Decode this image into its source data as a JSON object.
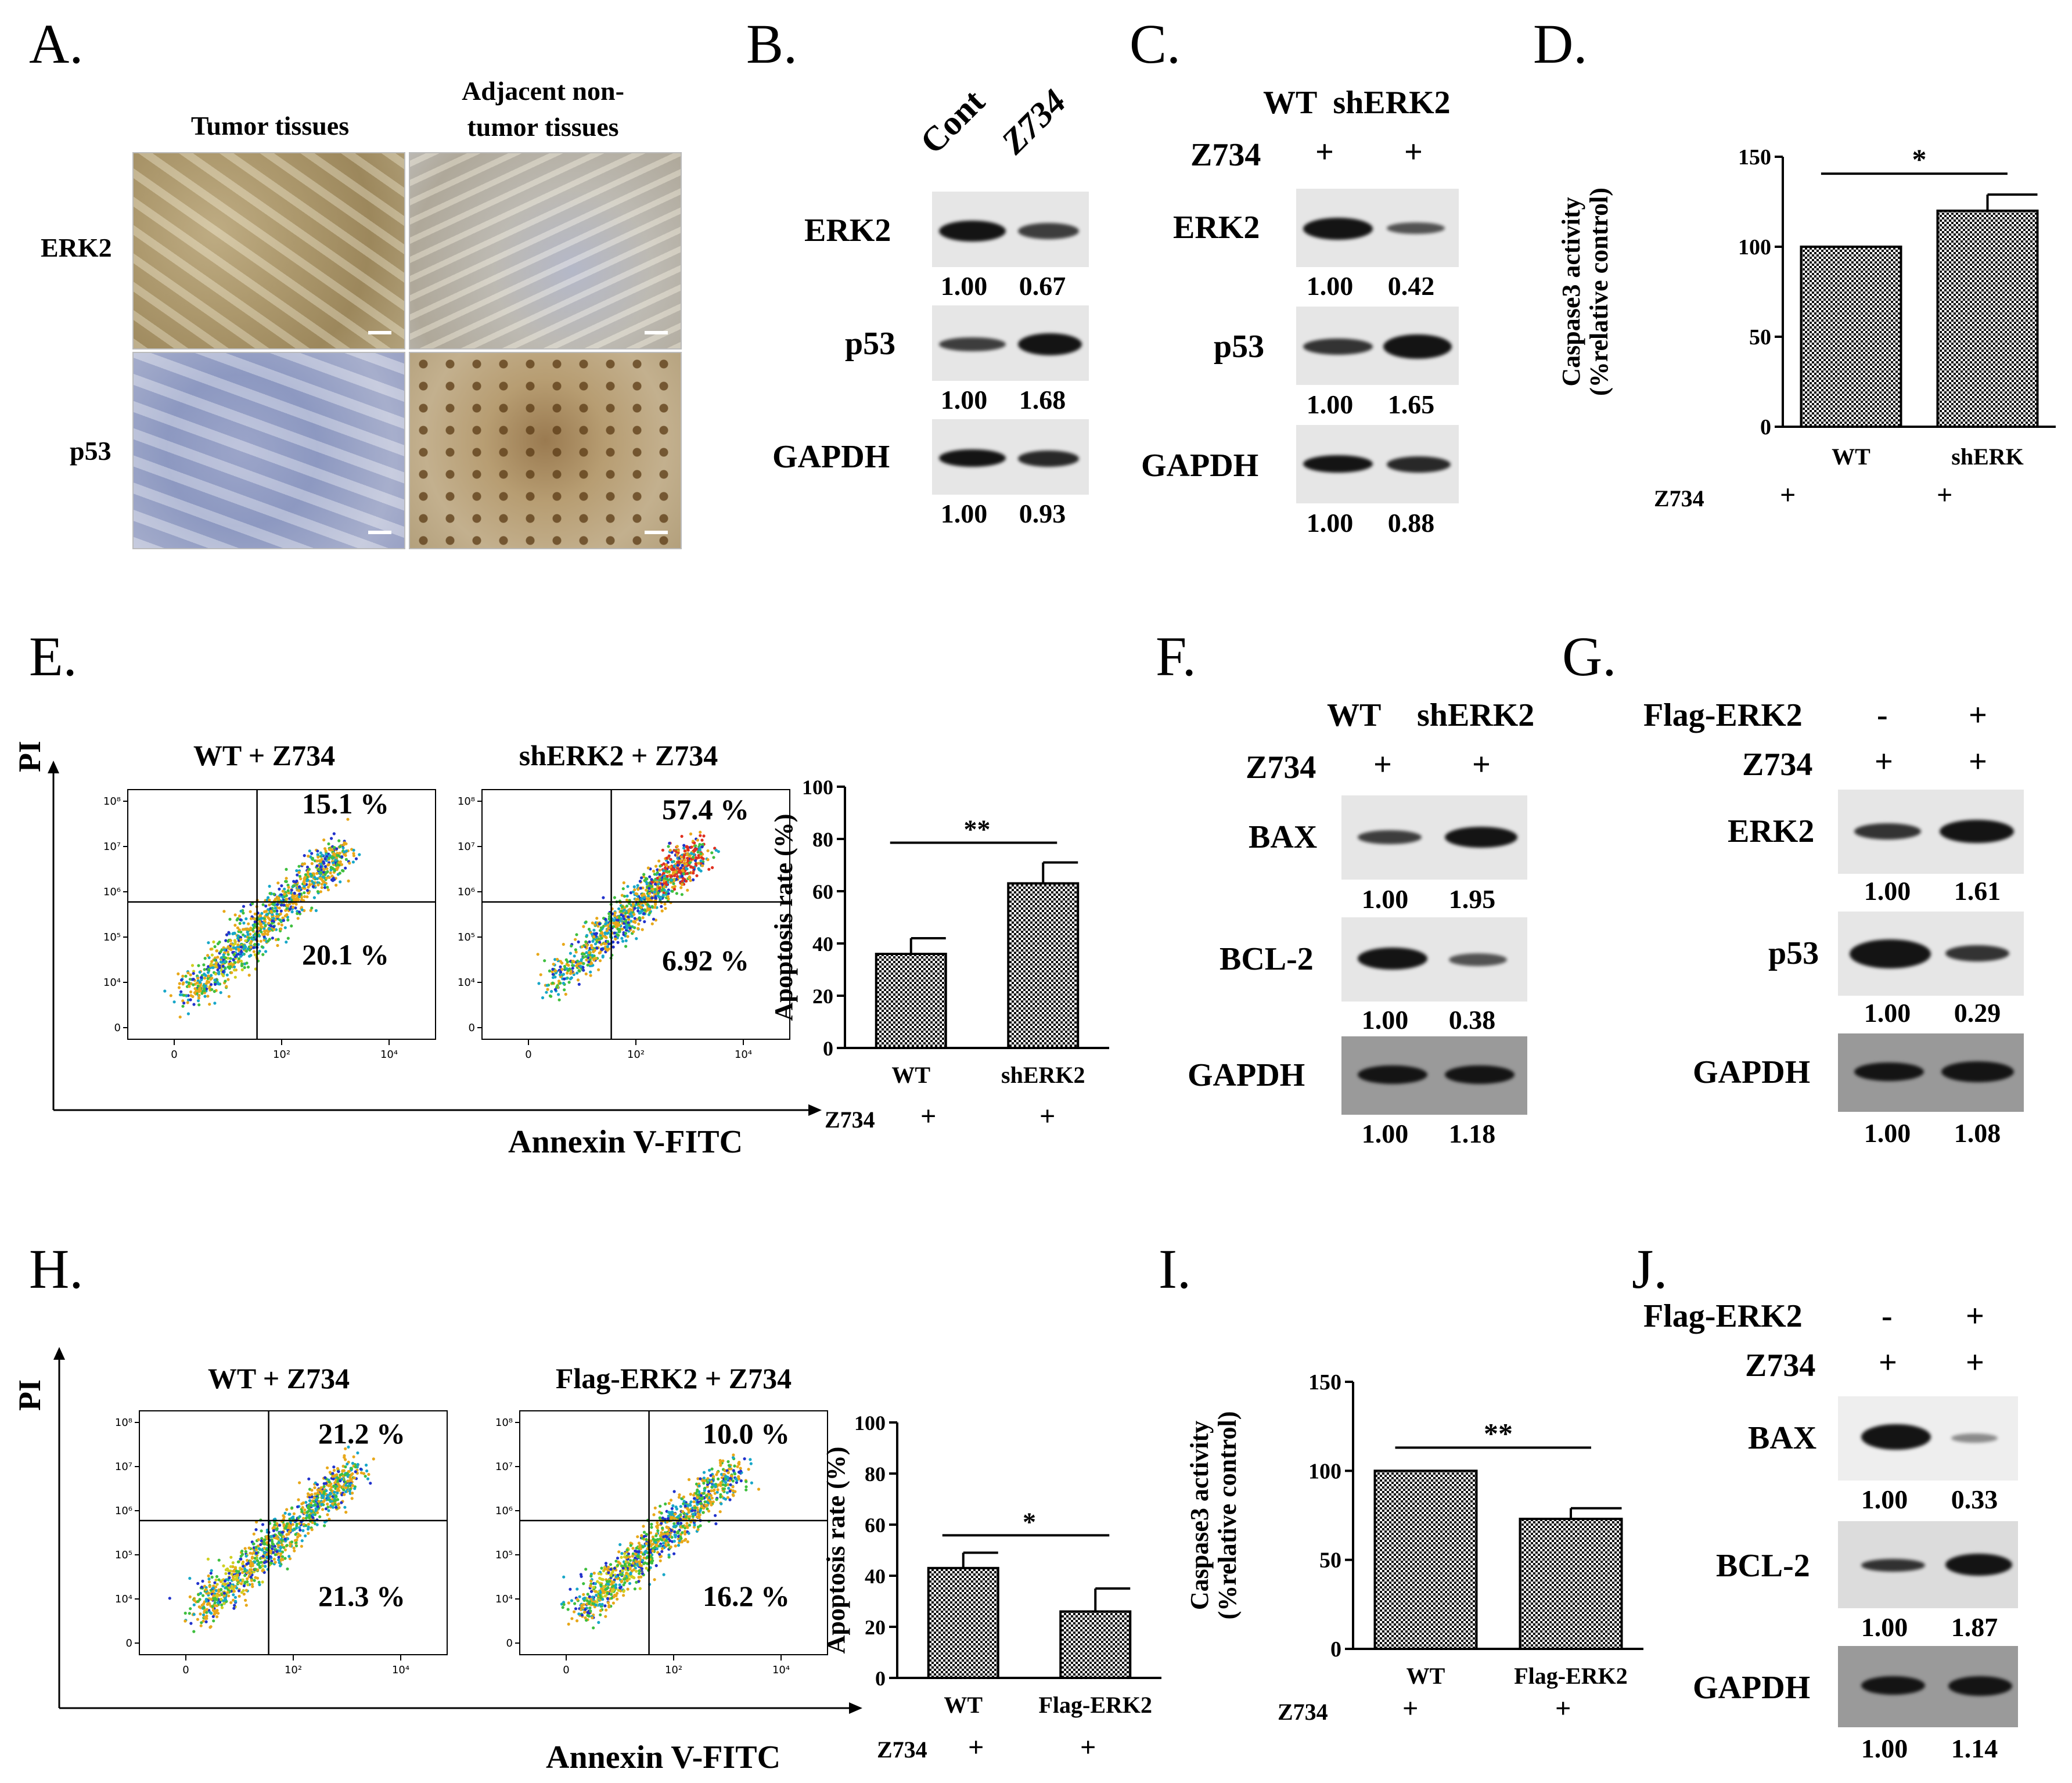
{
  "panels": {
    "A": {
      "letter": "A.",
      "col1": "Tumor tissues",
      "col2_line1": "Adjacent non-",
      "col2_line2": "tumor tissues",
      "row1": "ERK2",
      "row2": "p53"
    },
    "B": {
      "letter": "B.",
      "lane1": "Cont",
      "lane2": "Z734",
      "blots": [
        {
          "name": "ERK2",
          "q1": "1.00",
          "q2": "0.67",
          "intensity1": 1.0,
          "intensity2": 0.67
        },
        {
          "name": "p53",
          "q1": "1.00",
          "q2": "1.68",
          "intensity1": 0.6,
          "intensity2": 1.0
        },
        {
          "name": "GAPDH",
          "q1": "1.00",
          "q2": "0.93",
          "intensity1": 1.0,
          "intensity2": 0.93
        }
      ]
    },
    "C": {
      "letter": "C.",
      "header": "WT  shERK2",
      "treat_label": "Z734",
      "treat1": "+",
      "treat2": "+",
      "blots": [
        {
          "name": "ERK2",
          "q1": "1.00",
          "q2": "0.42",
          "intensity1": 1.0,
          "intensity2": 0.42
        },
        {
          "name": "p53",
          "q1": "1.00",
          "q2": "1.65",
          "intensity1": 0.61,
          "intensity2": 1.0
        },
        {
          "name": "GAPDH",
          "q1": "1.00",
          "q2": "0.88",
          "intensity1": 1.0,
          "intensity2": 0.88
        }
      ]
    },
    "D": {
      "letter": "D.",
      "treat_label": "Z734",
      "treat1": "+",
      "treat2": "+",
      "significance": "*"
    },
    "E": {
      "letter": "E.",
      "y_axis": "PI",
      "x_axis": "Annexin V-FITC",
      "plot1_title": "WT + Z734",
      "plot1_upper": "15.1 %",
      "plot1_lower": "20.1 %",
      "plot2_title": "shERK2 + Z734",
      "plot2_upper": "57.4 %",
      "plot2_lower": "6.92 %",
      "treat_label": "Z734",
      "treat1": "+",
      "treat2": "+",
      "significance": "**"
    },
    "F": {
      "letter": "F.",
      "header1": "WT",
      "header2": "shERK2",
      "treat_label": "Z734",
      "treat1": "+",
      "treat2": "+",
      "blots": [
        {
          "name": "BAX",
          "q1": "1.00",
          "q2": "1.95",
          "intensity1": 0.51,
          "intensity2": 1.0
        },
        {
          "name": "BCL-2",
          "q1": "1.00",
          "q2": "0.38",
          "intensity1": 1.0,
          "intensity2": 0.38
        },
        {
          "name": "GAPDH",
          "q1": "1.00",
          "q2": "1.18",
          "intensity1": 0.85,
          "intensity2": 1.0
        }
      ]
    },
    "G": {
      "letter": "G.",
      "flag_label": "Flag-ERK2",
      "flag1": "-",
      "flag2": "+",
      "treat_label": "Z734",
      "treat1": "+",
      "treat2": "+",
      "blots": [
        {
          "name": "ERK2",
          "q1": "1.00",
          "q2": "1.61",
          "intensity1": 0.62,
          "intensity2": 1.0
        },
        {
          "name": "p53",
          "q1": "1.00",
          "q2": "0.29",
          "intensity1": 1.0,
          "intensity2": 0.29
        },
        {
          "name": "GAPDH",
          "q1": "1.00",
          "q2": "1.08",
          "intensity1": 0.93,
          "intensity2": 1.0
        }
      ]
    },
    "H": {
      "letter": "H.",
      "y_axis": "PI",
      "x_axis": "Annexin V-FITC",
      "plot1_title": "WT + Z734",
      "plot1_upper": "21.2 %",
      "plot1_lower": "21.3 %",
      "plot2_title": "Flag-ERK2 + Z734",
      "plot2_upper": "10.0 %",
      "plot2_lower": "16.2 %",
      "treat_label": "Z734",
      "treat1": "+",
      "treat2": "+",
      "significance": "*"
    },
    "I": {
      "letter": "I.",
      "treat_label": "Z734",
      "treat1": "+",
      "treat2": "+",
      "significance": "**"
    },
    "J": {
      "letter": "J.",
      "flag_label": "Flag-ERK2",
      "flag1": "-",
      "flag2": "+",
      "treat_label": "Z734",
      "treat1": "+",
      "treat2": "+",
      "blots": [
        {
          "name": "BAX",
          "q1": "1.00",
          "q2": "0.33",
          "intensity1": 1.0,
          "intensity2": 0.33
        },
        {
          "name": "BCL-2",
          "q1": "1.00",
          "q2": "1.87",
          "intensity1": 0.53,
          "intensity2": 1.0
        },
        {
          "name": "GAPDH",
          "q1": "1.00",
          "q2": "1.14",
          "intensity1": 0.88,
          "intensity2": 1.0
        }
      ]
    }
  },
  "flow_axes": {
    "y_ticks": [
      "10⁸",
      "10⁷",
      "10⁶",
      "10⁵",
      "10⁴",
      "0"
    ],
    "x_ticks": [
      "0",
      "10²",
      "10⁴"
    ]
  },
  "colors": {
    "bar_fill": "#444444",
    "ihc_brown": "#a88a5a",
    "ihc_blue": "#8a9ac0"
  },
  "chart_data": [
    {
      "id": "D",
      "type": "bar",
      "categories": [
        "WT",
        "shERK"
      ],
      "values": [
        100,
        120
      ],
      "errors": [
        0,
        9
      ],
      "ylabel": "Caspase3 activity (%relative control)",
      "ylabel_line1": "Caspase3 activity",
      "ylabel_line2": "(%relative control)",
      "ylim": [
        0,
        150
      ],
      "yticks": [
        0,
        50,
        100,
        150
      ],
      "significance": "*"
    },
    {
      "id": "E",
      "type": "bar",
      "categories": [
        "WT",
        "shERK2"
      ],
      "values": [
        36,
        63
      ],
      "errors": [
        6,
        8
      ],
      "ylabel": "Apoptosis rate (%)",
      "ylim": [
        0,
        100
      ],
      "yticks": [
        0,
        20,
        40,
        60,
        80,
        100
      ],
      "significance": "**"
    },
    {
      "id": "H",
      "type": "bar",
      "categories": [
        "WT",
        "Flag-ERK2"
      ],
      "values": [
        43,
        26
      ],
      "errors": [
        6,
        9
      ],
      "ylabel": "Apoptosis rate (%)",
      "ylim": [
        0,
        100
      ],
      "yticks": [
        0,
        20,
        40,
        60,
        80,
        100
      ],
      "significance": "*"
    },
    {
      "id": "I",
      "type": "bar",
      "categories": [
        "WT",
        "Flag-ERK2"
      ],
      "values": [
        100,
        73
      ],
      "errors": [
        0,
        6
      ],
      "ylabel": "Caspase3 activity (%relative control)",
      "ylabel_line1": "Caspase3 activity",
      "ylabel_line2": "(%relative control)",
      "ylim": [
        0,
        150
      ],
      "yticks": [
        0,
        50,
        100,
        150
      ],
      "significance": "**"
    }
  ]
}
